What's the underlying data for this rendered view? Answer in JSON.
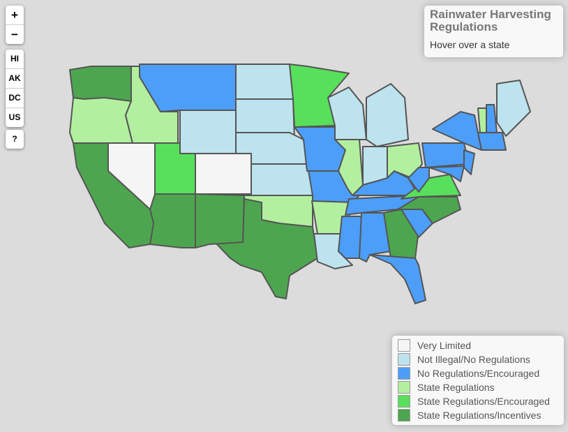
{
  "controls": {
    "zoom_in": "+",
    "zoom_out": "−",
    "views": [
      "HI",
      "AK",
      "DC",
      "US"
    ],
    "help": "?"
  },
  "info": {
    "title": "Rainwater Harvesting Regulations",
    "hint": "Hover over a state"
  },
  "legend": [
    {
      "label": "Very Limited",
      "color": "#f5f5f5"
    },
    {
      "label": "Not Illegal/No Regulations",
      "color": "#bde3ee"
    },
    {
      "label": "No Regulations/Encouraged",
      "color": "#4c9ef9"
    },
    {
      "label": "State Regulations",
      "color": "#b2f0a0"
    },
    {
      "label": "State Regulations/Encouraged",
      "color": "#58e05c"
    },
    {
      "label": "State Regulations/Incentives",
      "color": "#4da64f"
    }
  ]
}
